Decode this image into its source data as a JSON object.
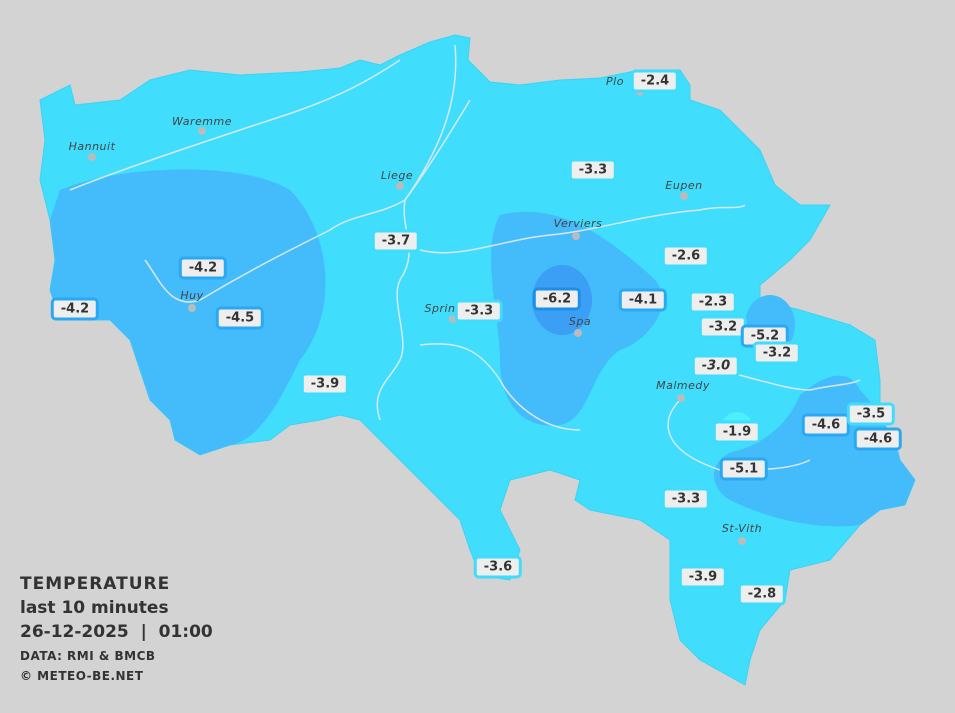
{
  "title": "TEMPERATURE",
  "subtitle": "last 10 minutes",
  "datetime": "26-12-2025  |  01:00",
  "source": "DATA: RMI & BMCB",
  "copyright": "© METEO-BE.NET",
  "colors": {
    "background": "#d3d3d3",
    "zone_mild": "#40ddfc",
    "zone_cold": "#44bbfb",
    "zone_colder": "#3a9ff5",
    "label_border_mild": "#3fdcfb",
    "label_border_cold": "#2aa8f2"
  },
  "cities": [
    "Hannuit",
    "Waremme",
    "Liege",
    "Verviers",
    "Eupen",
    "Sprin",
    "Huy",
    "Spa",
    "Malmedy",
    "St-Vith",
    "Plo"
  ],
  "stations": [
    {
      "value": "-2.4",
      "zone": "mild"
    },
    {
      "value": "-3.3",
      "zone": "mild"
    },
    {
      "value": "-3.7",
      "zone": "mild"
    },
    {
      "value": "-4.2",
      "zone": "cold"
    },
    {
      "value": "-4.2",
      "zone": "cold"
    },
    {
      "value": "-4.5",
      "zone": "cold"
    },
    {
      "value": "-3.3",
      "zone": "mild"
    },
    {
      "value": "-6.2",
      "zone": "colder"
    },
    {
      "value": "-4.1",
      "zone": "cold"
    },
    {
      "value": "-2.6",
      "zone": "mild"
    },
    {
      "value": "-2.3",
      "zone": "mild"
    },
    {
      "value": "-3.2",
      "zone": "mild"
    },
    {
      "value": "-5.2",
      "zone": "cold"
    },
    {
      "value": "-3.2",
      "zone": "mild"
    },
    {
      "value": "-3.0",
      "zone": "mild",
      "italic": true
    },
    {
      "value": "-3.9",
      "zone": "mild"
    },
    {
      "value": "-1.9",
      "zone": "mild"
    },
    {
      "value": "-4.6",
      "zone": "cold"
    },
    {
      "value": "-3.5",
      "zone": "mild"
    },
    {
      "value": "-4.6",
      "zone": "cold"
    },
    {
      "value": "-5.1",
      "zone": "cold"
    },
    {
      "value": "-3.3",
      "zone": "mild"
    },
    {
      "value": "-3.6",
      "zone": "mild"
    },
    {
      "value": "-3.9",
      "zone": "mild"
    },
    {
      "value": "-2.8",
      "zone": "mild"
    }
  ]
}
